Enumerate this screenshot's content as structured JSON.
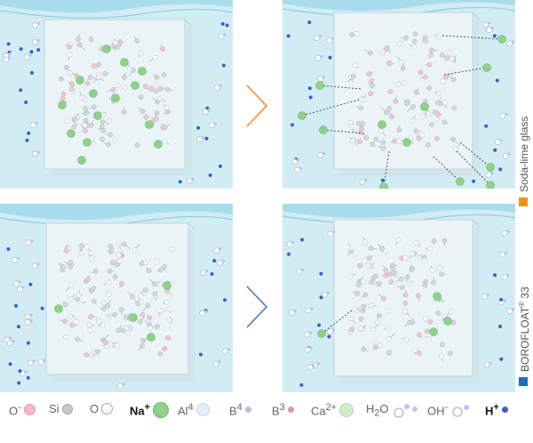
{
  "labels": {
    "soda_lime": "Soda-lime glass",
    "borofloat": "BOROFLOAT",
    "borofloat_sup": "®",
    "borofloat_num": " 33"
  },
  "colors": {
    "water": "#d2ecf3",
    "wave": "#a8dcea",
    "glass": "#eaf3f6",
    "soda_marker": "#f29018",
    "boro_marker": "#1e6fb5",
    "arrow_soda": "#f29018",
    "arrow_boro": "#4a78c8",
    "na": "#8fd18a",
    "ion": "#3f5fc4"
  },
  "legend": [
    {
      "label": "O",
      "sup": "-",
      "icon": "o-minus-dot"
    },
    {
      "label": "Si",
      "sup": "",
      "icon": "si-dot"
    },
    {
      "label": "O",
      "sup": "",
      "icon": "o-dot"
    },
    {
      "label": "Na",
      "sup": "+",
      "icon": "na-dot",
      "strong": true
    },
    {
      "label": "Al",
      "sup": "4",
      "icon": "al-dot"
    },
    {
      "label": "B",
      "sup": "4",
      "icon": "b4-dot"
    },
    {
      "label": "B",
      "sup": "3",
      "icon": "b3-dot"
    },
    {
      "label": "Ca",
      "sup": "2+",
      "icon": "ca-dot"
    },
    {
      "label": "H",
      "sub": "2",
      "tail": "O",
      "icon": "h2o-molecule"
    },
    {
      "label": "OH",
      "sup": "-",
      "icon": "oh-molecule"
    },
    {
      "label": "H",
      "sup": "+",
      "icon": "h-plus-dot",
      "strong": true
    }
  ]
}
